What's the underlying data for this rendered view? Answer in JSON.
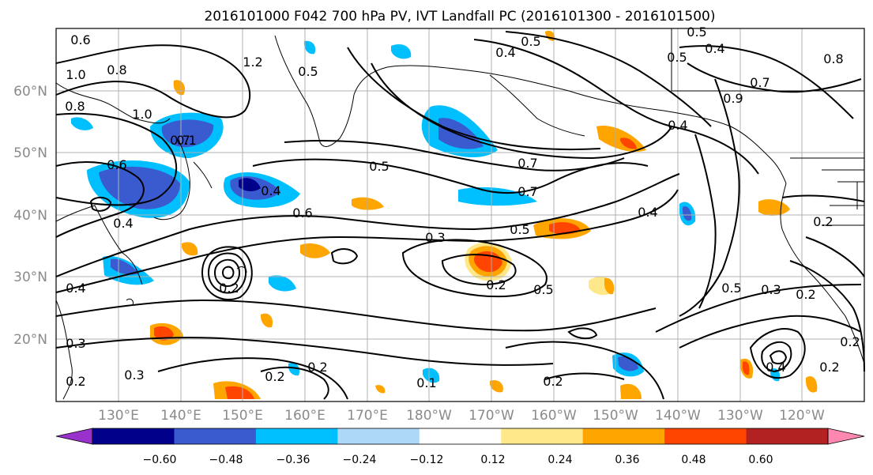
{
  "title": "2016101000 F042 700 hPa PV, IVT Landfall PC (2016101300 - 2016101500)",
  "lat_ticks": [
    "60°N",
    "50°N",
    "40°N",
    "30°N",
    "20°N"
  ],
  "lon_ticks": [
    "130°E",
    "140°E",
    "150°E",
    "160°E",
    "170°E",
    "180°W",
    "170°W",
    "160°W",
    "150°W",
    "140°W",
    "130°W",
    "120°W"
  ],
  "colorbar": {
    "tick_labels": [
      "−0.60",
      "−0.48",
      "−0.36",
      "−0.24",
      "−0.12",
      "0.12",
      "0.24",
      "0.36",
      "0.48",
      "0.60"
    ],
    "colors": [
      "#9932cc",
      "#00008b",
      "#3a5bd0",
      "#00bfff",
      "#add8f7",
      "#ffffff",
      "#ffe88a",
      "#ffa500",
      "#ff4500",
      "#b22222",
      "#ff88b0"
    ],
    "extend": "both"
  },
  "contour_labels": [
    "0.6",
    "0.8",
    "1.0",
    "0.8",
    "1.2",
    "1.0",
    "0.7",
    "0.6",
    "0.4",
    "0.5",
    "0.4",
    "0.6",
    "0.5",
    "0.3",
    "0.2",
    "0.4",
    "0.3",
    "0.2",
    "0.3",
    "0.2",
    "0.5",
    "0.5",
    "0.7",
    "0.7",
    "0.5",
    "0.4",
    "0.5",
    "0.4",
    "0.8",
    "0.5",
    "0.4",
    "0.9",
    "0.7",
    "0.4",
    "0.2",
    "0.5",
    "0.3",
    "0.2",
    "0.2",
    "0.4",
    "0.2",
    "0.2",
    "0.1",
    "0.2",
    "0.2",
    "0.1"
  ],
  "colors": {
    "contour": "#000000",
    "grid": "#b0b0b0",
    "axis_labels": "#8a8a8a"
  }
}
